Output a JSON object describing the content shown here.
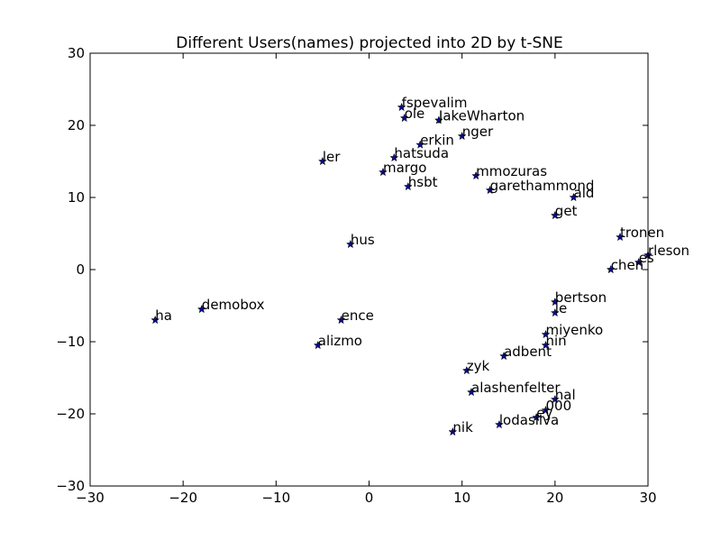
{
  "chart_data": {
    "type": "scatter",
    "title": "Different Users(names) projected into 2D by t-SNE",
    "xlabel": "",
    "ylabel": "",
    "xlim": [
      -30,
      30
    ],
    "ylim": [
      -30,
      30
    ],
    "xticks": [
      -30,
      -20,
      -10,
      0,
      10,
      20,
      30
    ],
    "yticks": [
      -30,
      -20,
      -10,
      0,
      10,
      20,
      30
    ],
    "marker": "star",
    "marker_color": "#0a0a8c",
    "grid": false,
    "points": [
      {
        "x": 3.5,
        "y": 22.5,
        "label": "fspevalim"
      },
      {
        "x": 3.8,
        "y": 21.0,
        "label": "ole"
      },
      {
        "x": 7.5,
        "y": 20.7,
        "label": "JakeWharton"
      },
      {
        "x": 10.0,
        "y": 18.5,
        "label": "nger"
      },
      {
        "x": 5.5,
        "y": 17.3,
        "label": "erkin"
      },
      {
        "x": 2.7,
        "y": 15.5,
        "label": "hatsuda"
      },
      {
        "x": 11.5,
        "y": 13.0,
        "label": "mmozuras"
      },
      {
        "x": 13.0,
        "y": 11.0,
        "label": "garethammond"
      },
      {
        "x": 4.2,
        "y": 11.5,
        "label": "hsbt"
      },
      {
        "x": 22.0,
        "y": 10.0,
        "label": "ald"
      },
      {
        "x": 20.0,
        "y": 7.5,
        "label": "get"
      },
      {
        "x": 27.0,
        "y": 4.5,
        "label": "tronen"
      },
      {
        "x": 30.0,
        "y": 2.0,
        "label": "rleson"
      },
      {
        "x": 29.0,
        "y": 1.0,
        "label": "es"
      },
      {
        "x": 26.0,
        "y": 0.0,
        "label": "chen"
      },
      {
        "x": 20.0,
        "y": -4.5,
        "label": "bertson"
      },
      {
        "x": 20.0,
        "y": -6.0,
        "label": "ie"
      },
      {
        "x": 19.0,
        "y": -9.0,
        "label": "miyenko"
      },
      {
        "x": 19.0,
        "y": -10.5,
        "label": "nin"
      },
      {
        "x": 14.5,
        "y": -12.0,
        "label": "adbent"
      },
      {
        "x": 10.5,
        "y": -14.0,
        "label": "zyk"
      },
      {
        "x": 11.0,
        "y": -17.0,
        "label": "alashenfelter"
      },
      {
        "x": 20.0,
        "y": -18.0,
        "label": "nal"
      },
      {
        "x": 19.0,
        "y": -19.5,
        "label": "000"
      },
      {
        "x": 18.0,
        "y": -20.5,
        "label": "ey"
      },
      {
        "x": 14.0,
        "y": -21.5,
        "label": "lodasilva"
      },
      {
        "x": 9.0,
        "y": -22.5,
        "label": "nik"
      },
      {
        "x": -23.0,
        "y": -7.0,
        "label": "ha"
      },
      {
        "x": -18.0,
        "y": -5.5,
        "label": "demobox"
      },
      {
        "x": -3.0,
        "y": -7.0,
        "label": "ence"
      },
      {
        "x": -5.5,
        "y": -10.5,
        "label": "alizmo"
      },
      {
        "x": -2.0,
        "y": 3.5,
        "label": "hus"
      },
      {
        "x": -5.0,
        "y": 15.0,
        "label": "ler"
      },
      {
        "x": 1.5,
        "y": 13.5,
        "label": "margo"
      }
    ]
  }
}
